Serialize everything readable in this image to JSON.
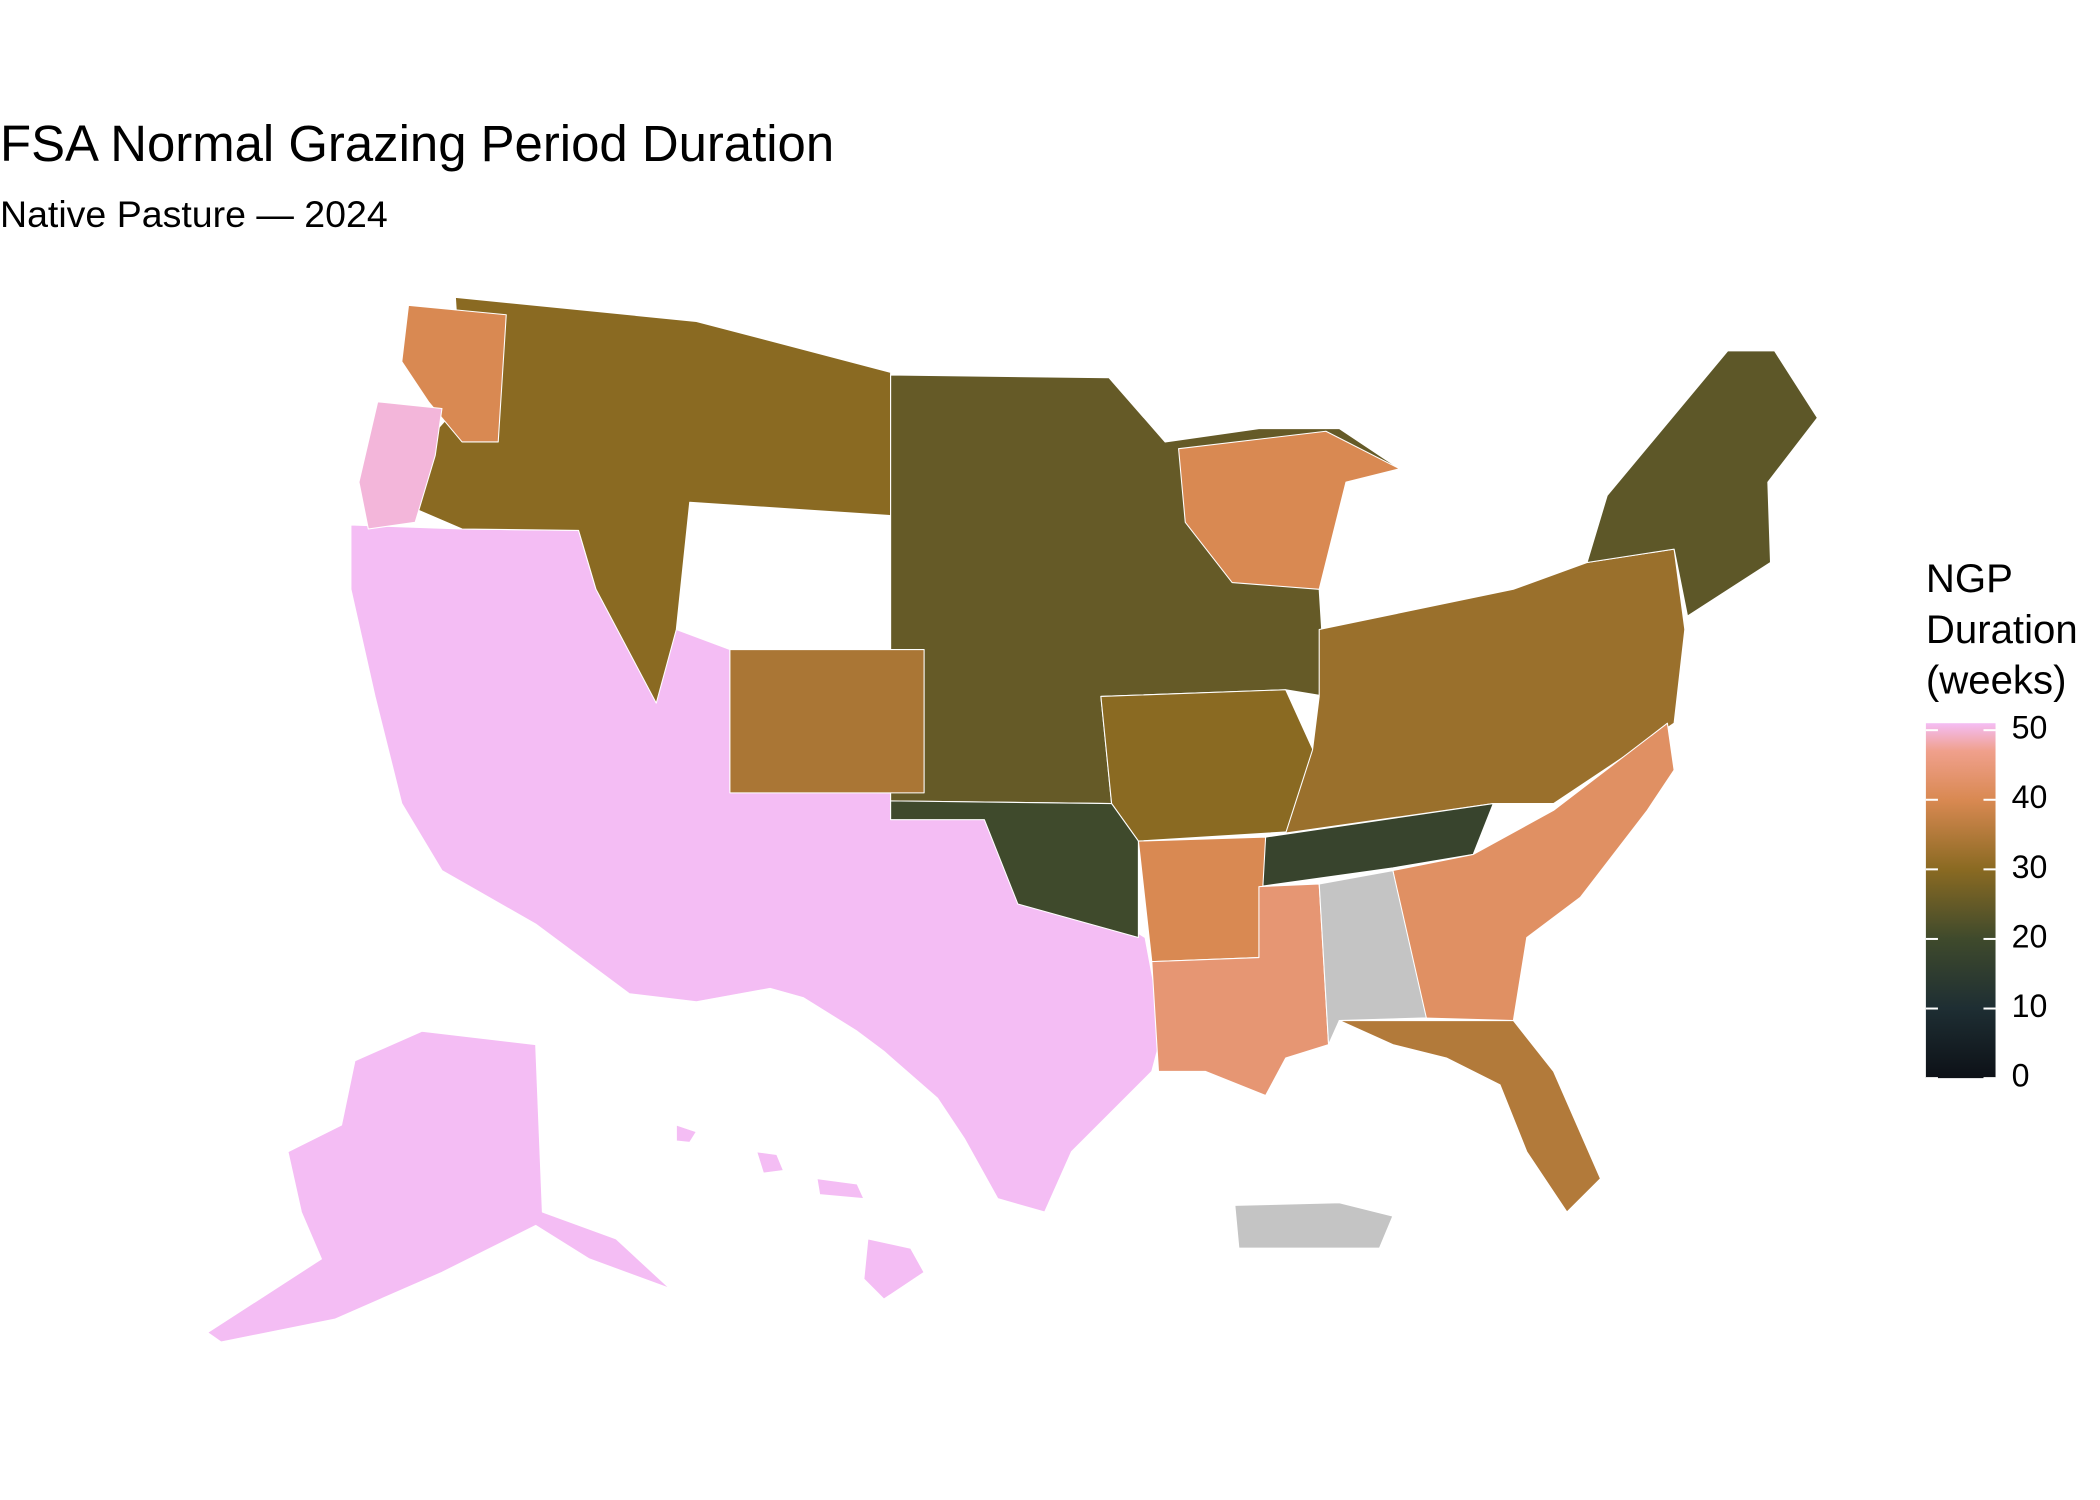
{
  "chart_data": {
    "type": "choropleth",
    "title": "FSA Normal Grazing Period Duration",
    "subtitle": "Native Pasture — 2024",
    "legend_title": [
      "NGP",
      "Duration",
      "(weeks)"
    ],
    "values": [
      52,
      30,
      40,
      50,
      25,
      40,
      34,
      30,
      20,
      32,
      24,
      18,
      42,
      40,
      44,
      null,
      35,
      52,
      52,
      52,
      52,
      52,
      null
    ],
    "clim": [
      0,
      51
    ],
    "cticks": [
      0,
      10,
      20,
      30,
      40,
      50
    ],
    "colorscale": [
      {
        "value": 0,
        "color": "#0d1117"
      },
      {
        "value": 10,
        "color": "#1e2e33"
      },
      {
        "value": 20,
        "color": "#3f4a2c"
      },
      {
        "value": 30,
        "color": "#8a6a22"
      },
      {
        "value": 40,
        "color": "#d98952"
      },
      {
        "value": 47,
        "color": "#f0a08c"
      },
      {
        "value": 51,
        "color": "#f4bdf4"
      }
    ],
    "na_color": "#c4c4c4"
  }
}
